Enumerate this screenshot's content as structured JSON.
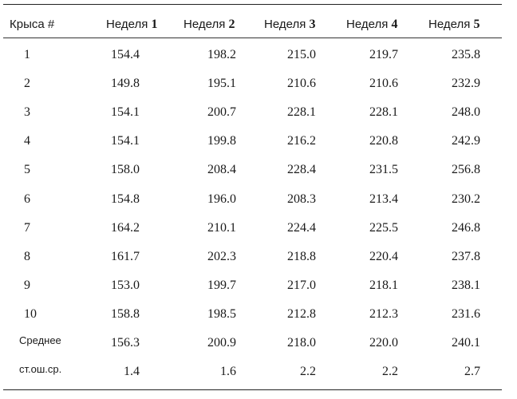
{
  "table": {
    "header": {
      "rat_label": "Крыса #",
      "week_word": "Неделя",
      "weeks": [
        "1",
        "2",
        "3",
        "4",
        "5"
      ]
    },
    "rows": [
      {
        "label": "1",
        "values": [
          "154.4",
          "198.2",
          "215.0",
          "219.7",
          "235.8"
        ]
      },
      {
        "label": "2",
        "values": [
          "149.8",
          "195.1",
          "210.6",
          "210.6",
          "232.9"
        ]
      },
      {
        "label": "3",
        "values": [
          "154.1",
          "200.7",
          "228.1",
          "228.1",
          "248.0"
        ]
      },
      {
        "label": "4",
        "values": [
          "154.1",
          "199.8",
          "216.2",
          "220.8",
          "242.9"
        ]
      },
      {
        "label": "5",
        "values": [
          "158.0",
          "208.4",
          "228.4",
          "231.5",
          "256.8"
        ]
      },
      {
        "label": "6",
        "values": [
          "154.8",
          "196.0",
          "208.3",
          "213.4",
          "230.2"
        ]
      },
      {
        "label": "7",
        "values": [
          "164.2",
          "210.1",
          "224.4",
          "225.5",
          "246.8"
        ]
      },
      {
        "label": "8",
        "values": [
          "161.7",
          "202.3",
          "218.8",
          "220.4",
          "237.8"
        ]
      },
      {
        "label": "9",
        "values": [
          "153.0",
          "199.7",
          "217.0",
          "218.1",
          "238.1"
        ]
      },
      {
        "label": "10",
        "values": [
          "158.8",
          "198.5",
          "212.8",
          "212.3",
          "231.6"
        ]
      }
    ],
    "summary_rows": [
      {
        "label": "Среднее",
        "values": [
          "156.3",
          "200.9",
          "218.0",
          "220.0",
          "240.1"
        ]
      },
      {
        "label": "ст.ош.ср.",
        "values": [
          "1.4",
          "1.6",
          "2.2",
          "2.2",
          "2.7"
        ]
      }
    ]
  }
}
